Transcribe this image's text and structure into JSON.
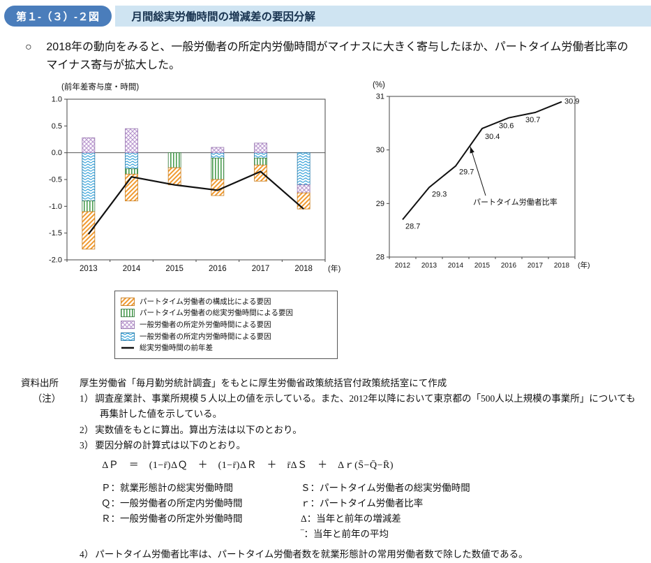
{
  "header": {
    "figure_label": "第１-（３）-２図",
    "title": "月間総実労働時間の増減差の要因分解"
  },
  "summary": {
    "marker": "○",
    "text": "2018年の動向をみると、一般労働者の所定内労働時間がマイナスに大きく寄与したほか、パートタイム労働者比率のマイナス寄与が拡大した。"
  },
  "chart_data": [
    {
      "type": "bar",
      "subtype": "stacked-bars-with-line",
      "unit_label": "(前年差寄与度・時間)",
      "categories": [
        "2013",
        "2014",
        "2015",
        "2016",
        "2017",
        "2018"
      ],
      "x_suffix": "(年)",
      "ylim": [
        -2.0,
        1.0
      ],
      "yticks": [
        "1.0",
        "0.5",
        "0.0",
        "-0.5",
        "-1.0",
        "-1.5",
        "-2.0"
      ],
      "grid": false,
      "legend_position": "below",
      "series": [
        {
          "key": "pt_composition",
          "name": "パートタイム労働者の構成比による要因",
          "pattern": "diag",
          "color": "#f09a30",
          "border": "#c87d1e",
          "values": [
            -0.7,
            -0.5,
            -0.32,
            -0.3,
            -0.3,
            -0.3
          ]
        },
        {
          "key": "pt_hours",
          "name": "パートタイム労働者の総実労働時間による要因",
          "pattern": "vertical",
          "color": "#4a9e50",
          "border": "#3a7d40",
          "values": [
            -0.2,
            -0.1,
            -0.28,
            -0.4,
            -0.13,
            0.0
          ]
        },
        {
          "key": "overtime",
          "name": "一般労働者の所定外労働時間による要因",
          "pattern": "diamond",
          "color": "#b592cc",
          "border": "#9675ae",
          "values": [
            0.28,
            0.45,
            0.0,
            0.1,
            0.18,
            -0.15
          ]
        },
        {
          "key": "scheduled",
          "name": "一般労働者の所定内労働時間による要因",
          "pattern": "wave",
          "color": "#2d9ed8",
          "border": "#2579a8",
          "values": [
            -0.9,
            -0.3,
            0.0,
            -0.1,
            -0.1,
            -0.6
          ]
        }
      ],
      "line_series": {
        "name": "総実労働時間の前年差",
        "color": "#111111",
        "values": [
          -1.52,
          -0.45,
          -0.6,
          -0.7,
          -0.35,
          -1.05
        ]
      }
    },
    {
      "type": "line",
      "unit_label": "(%)",
      "categories": [
        "2012",
        "2013",
        "2014",
        "2015",
        "2016",
        "2017",
        "2018"
      ],
      "x_suffix": "(年)",
      "ylim": [
        28,
        31
      ],
      "yticks": [
        "31",
        "30",
        "29",
        "28"
      ],
      "grid": false,
      "series": [
        {
          "name": "パートタイム労働者比率",
          "color": "#111111",
          "values": [
            28.7,
            29.3,
            29.7,
            30.4,
            30.6,
            30.7,
            30.9
          ],
          "labels": [
            "28.7",
            "29.3",
            "29.7",
            "30.4",
            "30.6",
            "30.7",
            "30.9"
          ]
        }
      ],
      "annotation": {
        "text": "パートタイム労働者比率"
      }
    }
  ],
  "source": {
    "label": "資料出所",
    "text": "厚生労働省「毎月勤労統計調査」をもとに厚生労働省政策統括官付政策統括室にて作成"
  },
  "notes": {
    "label": "（注）",
    "items": [
      {
        "no": "1）",
        "text": "調査産業計、事業所規模５人以上の値を示している。また、2012年以降において東京都の「500人以上規模の事業所」についても再集計した値を示している。"
      },
      {
        "no": "2）",
        "text": "実数値をもとに算出。算出方法は以下のとおり。"
      },
      {
        "no": "3）",
        "text": "要因分解の計算式は以下のとおり。"
      },
      {
        "no": "4）",
        "text": "パートタイム労働者比率は、パートタイム労働者数を就業形態計の常用労働者数で除した数値である。"
      }
    ],
    "formula": "ΔＰ　＝　(1−r̄)ΔＱ　＋　(1−r̄)ΔＲ　＋　r̄ΔＳ　＋　Δｒ(S̄−Q̄−R̄)",
    "definitions": [
      [
        "Ｐ：就業形態計の総実労働時間",
        "Ｓ：パートタイム労働者の総実労働時間"
      ],
      [
        "Ｑ：一般労働者の所定内労働時間",
        "ｒ：パートタイム労働者比率"
      ],
      [
        "Ｒ：一般労働者の所定外労働時間",
        "Δ：当年と前年の増減差"
      ],
      [
        "",
        "‾：当年と前年の平均"
      ]
    ]
  }
}
